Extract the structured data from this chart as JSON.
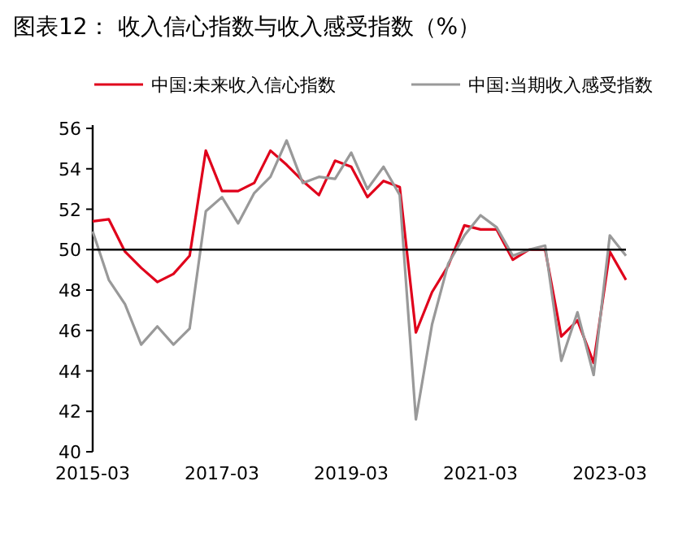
{
  "chart_data": {
    "type": "line",
    "title": "图表12： 收入信心指数与收入感受指数（%）",
    "x": [
      "2015-03",
      "2015-06",
      "2015-09",
      "2015-12",
      "2016-03",
      "2016-06",
      "2016-09",
      "2016-12",
      "2017-03",
      "2017-06",
      "2017-09",
      "2017-12",
      "2018-03",
      "2018-06",
      "2018-09",
      "2018-12",
      "2019-03",
      "2019-06",
      "2019-09",
      "2019-12",
      "2020-03",
      "2020-06",
      "2020-09",
      "2020-12",
      "2021-03",
      "2021-06",
      "2021-09",
      "2021-12",
      "2022-03",
      "2022-06",
      "2022-09",
      "2022-12",
      "2023-03",
      "2023-06"
    ],
    "series": [
      {
        "name": "中国:未来收入信心指数",
        "color": "#e0001b",
        "values": [
          51.4,
          51.5,
          49.9,
          49.1,
          48.4,
          48.8,
          49.7,
          54.9,
          52.9,
          52.9,
          53.3,
          54.9,
          54.2,
          53.4,
          52.7,
          54.4,
          54.1,
          52.6,
          53.4,
          53.1,
          45.9,
          47.9,
          49.2,
          51.2,
          51.0,
          51.0,
          49.5,
          50.0,
          50.0,
          45.7,
          46.5,
          44.4,
          49.9,
          48.5
        ]
      },
      {
        "name": "中国:当期收入感受指数",
        "color": "#999999",
        "values": [
          50.9,
          48.5,
          47.3,
          45.3,
          46.2,
          45.3,
          46.1,
          51.9,
          52.6,
          51.3,
          52.8,
          53.6,
          55.4,
          53.3,
          53.6,
          53.5,
          54.8,
          53.0,
          54.1,
          52.7,
          41.6,
          46.3,
          49.3,
          50.7,
          51.7,
          51.1,
          49.7,
          50.0,
          50.2,
          44.5,
          46.9,
          43.8,
          50.7,
          49.7
        ]
      }
    ],
    "xlim": [
      "2015-03",
      "2023-06"
    ],
    "xticks": [
      "2015-03",
      "2017-03",
      "2019-03",
      "2021-03",
      "2023-03"
    ],
    "ylim": [
      40,
      56
    ],
    "yticks": [
      40,
      42,
      44,
      46,
      48,
      50,
      52,
      54,
      56
    ],
    "ref_lines": [
      {
        "axis": "y",
        "value": 50,
        "color": "#000000"
      }
    ],
    "legend": "top",
    "grid": false,
    "line_style": "solid",
    "marker": "none"
  }
}
